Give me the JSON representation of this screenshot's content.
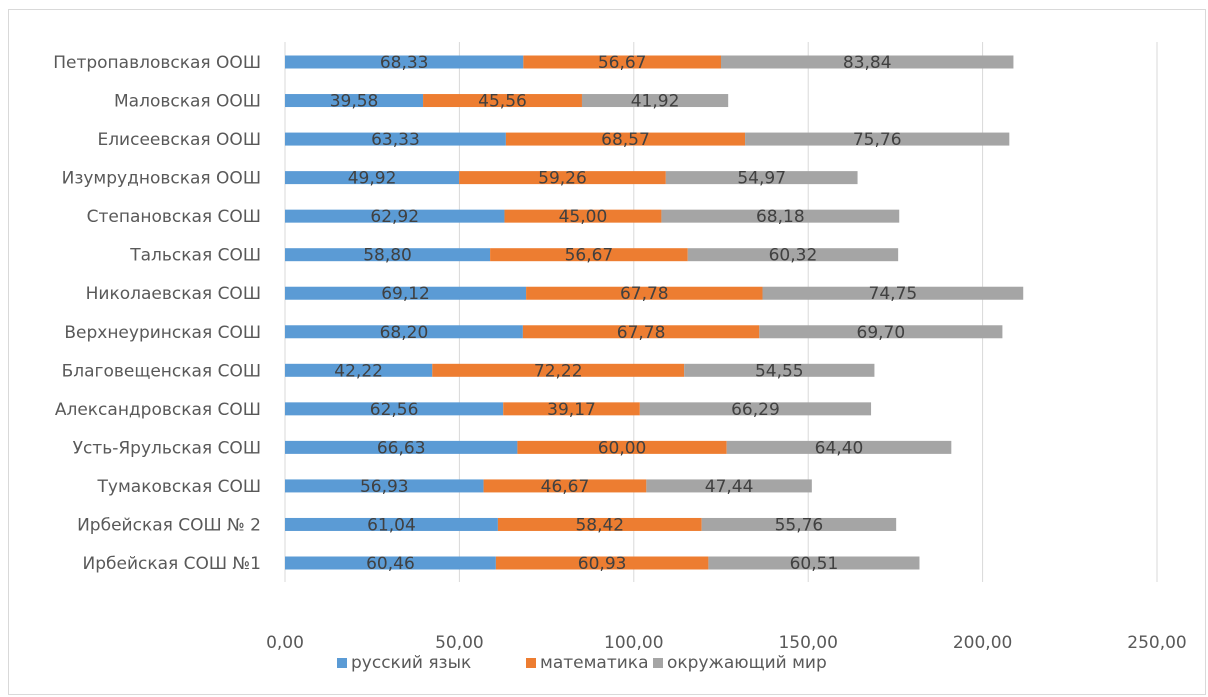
{
  "chart_data": {
    "type": "bar",
    "orientation": "horizontal",
    "stacked": true,
    "categories": [
      "Петропавловская ООШ",
      "Маловская ООШ",
      "Елисеевская ООШ",
      "Изумрудновская ООШ",
      "Степановская СОШ",
      "Тальская СОШ",
      "Николаевская СОШ",
      "Верхнеуринская СОШ",
      "Благовещенская СОШ",
      "Александровская СОШ",
      "Усть-Ярульская  СОШ",
      "Тумаковская СОШ",
      "Ирбейская СОШ № 2",
      "Ирбейская СОШ №1"
    ],
    "series": [
      {
        "name": "русский язык",
        "color": "#5b9bd5",
        "values": [
          68.33,
          39.58,
          63.33,
          49.92,
          62.92,
          58.8,
          69.12,
          68.2,
          42.22,
          62.56,
          66.63,
          56.93,
          61.04,
          60.46
        ],
        "labels": [
          "68,33",
          "39,58",
          "63,33",
          "49,92",
          "62,92",
          "58,80",
          "69,12",
          "68,20",
          "42,22",
          "62,56",
          "66,63",
          "56,93",
          "61,04",
          "60,46"
        ]
      },
      {
        "name": "математика",
        "color": "#ed7d31",
        "values": [
          56.67,
          45.56,
          68.57,
          59.26,
          45.0,
          56.67,
          67.78,
          67.78,
          72.22,
          39.17,
          60.0,
          46.67,
          58.42,
          60.93
        ],
        "labels": [
          "56,67",
          "45,56",
          "68,57",
          "59,26",
          "45,00",
          "56,67",
          "67,78",
          "67,78",
          "72,22",
          "39,17",
          "60,00",
          "46,67",
          "58,42",
          "60,93"
        ]
      },
      {
        "name": "окружающий мир",
        "color": "#a5a5a5",
        "values": [
          83.84,
          41.92,
          75.76,
          54.97,
          68.18,
          60.32,
          74.75,
          69.7,
          54.55,
          66.29,
          64.4,
          47.44,
          55.76,
          60.51
        ],
        "labels": [
          "83,84",
          "41,92",
          "75,76",
          "54,97",
          "68,18",
          "60,32",
          "74,75",
          "69,70",
          "54,55",
          "66,29",
          "64,40",
          "47,44",
          "55,76",
          "60,51"
        ]
      }
    ],
    "xlim": [
      0,
      250
    ],
    "xticks": [
      0,
      50,
      100,
      150,
      200,
      250
    ],
    "xtick_labels": [
      "0,00",
      "50,00",
      "100,00",
      "150,00",
      "200,00",
      "250,00"
    ],
    "grid": "vertical",
    "legend_position": "bottom",
    "title": "",
    "xlabel": "",
    "ylabel": ""
  }
}
